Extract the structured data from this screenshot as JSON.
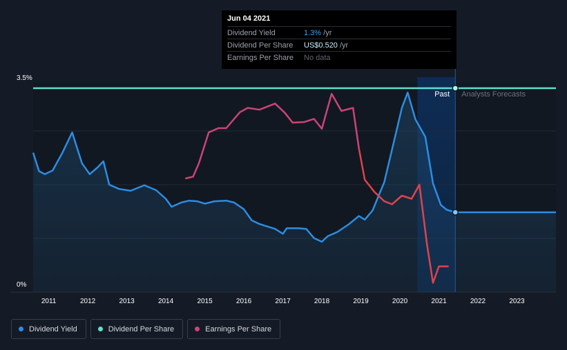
{
  "tooltip": {
    "date": "Jun 04 2021",
    "rows": [
      {
        "label": "Dividend Yield",
        "value": "1.3%",
        "suffix": " /yr"
      },
      {
        "label": "Dividend Per Share",
        "value": "US$0.520",
        "suffix": " /yr"
      },
      {
        "label": "Earnings Per Share",
        "value": "No data",
        "suffix": ""
      }
    ]
  },
  "legend": [
    {
      "label": "Dividend Yield",
      "color": "#2d8de3"
    },
    {
      "label": "Dividend Per Share",
      "color": "#5ee0cf"
    },
    {
      "label": "Earnings Per Share",
      "color": "#cc4477"
    }
  ],
  "chart_data": {
    "type": "line",
    "title": "",
    "xlabel": "",
    "ylabel": "",
    "y_tick_labels": [
      "3.5%",
      "0%"
    ],
    "x_ticks": [
      2011,
      2012,
      2013,
      2014,
      2015,
      2016,
      2017,
      2018,
      2019,
      2020,
      2021,
      2022,
      2023
    ],
    "xlim": [
      2010.6,
      2024.0
    ],
    "ylim": [
      0,
      3.5
    ],
    "divider_labels": {
      "past": "Past",
      "forecast": "Analysts Forecasts"
    },
    "divider_x": 2021.42,
    "series": [
      {
        "name": "Dividend Yield",
        "color": "#2d8de3",
        "unit": "%",
        "points": [
          [
            2010.6,
            2.27
          ],
          [
            2010.75,
            1.97
          ],
          [
            2010.9,
            1.92
          ],
          [
            2011.1,
            1.98
          ],
          [
            2011.35,
            2.27
          ],
          [
            2011.6,
            2.6
          ],
          [
            2011.85,
            2.1
          ],
          [
            2012.05,
            1.92
          ],
          [
            2012.25,
            2.03
          ],
          [
            2012.4,
            2.13
          ],
          [
            2012.55,
            1.75
          ],
          [
            2012.8,
            1.68
          ],
          [
            2013.1,
            1.65
          ],
          [
            2013.45,
            1.74
          ],
          [
            2013.75,
            1.66
          ],
          [
            2014.0,
            1.52
          ],
          [
            2014.15,
            1.39
          ],
          [
            2014.4,
            1.46
          ],
          [
            2014.6,
            1.49
          ],
          [
            2014.8,
            1.48
          ],
          [
            2015.0,
            1.44
          ],
          [
            2015.25,
            1.48
          ],
          [
            2015.55,
            1.49
          ],
          [
            2015.75,
            1.46
          ],
          [
            2016.0,
            1.35
          ],
          [
            2016.2,
            1.17
          ],
          [
            2016.4,
            1.11
          ],
          [
            2016.8,
            1.03
          ],
          [
            2017.0,
            0.95
          ],
          [
            2017.1,
            1.04
          ],
          [
            2017.4,
            1.04
          ],
          [
            2017.6,
            1.03
          ],
          [
            2017.8,
            0.88
          ],
          [
            2018.0,
            0.82
          ],
          [
            2018.15,
            0.91
          ],
          [
            2018.4,
            0.98
          ],
          [
            2018.7,
            1.11
          ],
          [
            2018.95,
            1.24
          ],
          [
            2019.1,
            1.18
          ],
          [
            2019.3,
            1.33
          ],
          [
            2019.6,
            1.79
          ],
          [
            2019.85,
            2.46
          ],
          [
            2020.05,
            3.0
          ],
          [
            2020.2,
            3.25
          ],
          [
            2020.4,
            2.81
          ],
          [
            2020.65,
            2.53
          ],
          [
            2020.85,
            1.77
          ],
          [
            2021.05,
            1.42
          ],
          [
            2021.2,
            1.34
          ],
          [
            2021.42,
            1.3
          ],
          [
            2024.0,
            1.3
          ]
        ]
      },
      {
        "name": "Dividend Per Share",
        "color": "#5ee0cf",
        "unit": "US$",
        "points": [
          [
            2010.6,
            0.52
          ],
          [
            2024.0,
            0.52
          ]
        ]
      },
      {
        "name": "Earnings Per Share",
        "color": "#cc4477",
        "unit": "US$",
        "points": [
          [
            2014.5,
            1.85
          ],
          [
            2014.7,
            1.88
          ],
          [
            2014.85,
            2.1
          ],
          [
            2015.1,
            2.6
          ],
          [
            2015.35,
            2.67
          ],
          [
            2015.55,
            2.67
          ],
          [
            2015.9,
            2.93
          ],
          [
            2016.1,
            3.0
          ],
          [
            2016.4,
            2.97
          ],
          [
            2016.8,
            3.07
          ],
          [
            2017.05,
            2.92
          ],
          [
            2017.25,
            2.76
          ],
          [
            2017.55,
            2.77
          ],
          [
            2017.8,
            2.82
          ],
          [
            2018.0,
            2.66
          ],
          [
            2018.25,
            3.23
          ],
          [
            2018.5,
            2.95
          ],
          [
            2018.8,
            3.0
          ],
          [
            2018.95,
            2.34
          ],
          [
            2019.1,
            1.83
          ],
          [
            2019.35,
            1.63
          ],
          [
            2019.6,
            1.48
          ],
          [
            2019.8,
            1.43
          ],
          [
            2020.05,
            1.57
          ],
          [
            2020.3,
            1.52
          ],
          [
            2020.5,
            1.75
          ],
          [
            2020.7,
            0.75
          ],
          [
            2020.85,
            0.15
          ],
          [
            2021.0,
            0.42
          ],
          [
            2021.25,
            0.42
          ]
        ]
      }
    ],
    "tooltip_marker": {
      "x": 2021.42,
      "dividend_yield": 1.3,
      "dividend_per_share": 0.52
    }
  }
}
